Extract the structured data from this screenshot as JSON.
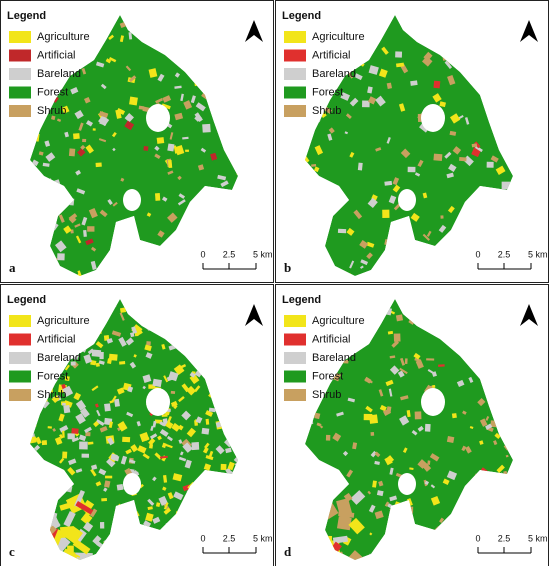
{
  "panels": [
    {
      "label": "a",
      "legend": {
        "title": "Legend",
        "items": [
          {
            "name": "Agriculture",
            "color": "#f2e51a"
          },
          {
            "name": "Artificial",
            "color": "#c0282a"
          },
          {
            "name": "Bareland",
            "color": "#cfcfcf"
          },
          {
            "name": "Forest",
            "color": "#1f9a1f"
          },
          {
            "name": "Shrub",
            "color": "#c8a060"
          }
        ]
      },
      "scale": [
        "0",
        "2.5",
        "5 km"
      ]
    },
    {
      "label": "b",
      "legend": {
        "title": "Legend",
        "items": [
          {
            "name": "Agriculture",
            "color": "#f2e51a"
          },
          {
            "name": "Artificial",
            "color": "#e0302e"
          },
          {
            "name": "Bareland",
            "color": "#cfcfcf"
          },
          {
            "name": "Forest",
            "color": "#1f9a1f"
          },
          {
            "name": "Shrub",
            "color": "#c8a060"
          }
        ]
      },
      "scale": [
        "0",
        "2.5",
        "5 km"
      ]
    },
    {
      "label": "c",
      "legend": {
        "title": "Legend",
        "items": [
          {
            "name": "Agriculture",
            "color": "#f2e51a"
          },
          {
            "name": "Artificial",
            "color": "#e0302e"
          },
          {
            "name": "Bareland",
            "color": "#cfcfcf"
          },
          {
            "name": "Forest",
            "color": "#1f9a1f"
          },
          {
            "name": "Shrub",
            "color": "#c8a060"
          }
        ]
      },
      "scale": [
        "0",
        "2.5",
        "5 km"
      ]
    },
    {
      "label": "d",
      "legend": {
        "title": "Legend",
        "items": [
          {
            "name": "Agriculture",
            "color": "#f2e51a"
          },
          {
            "name": "Artificial",
            "color": "#e0302e"
          },
          {
            "name": "Bareland",
            "color": "#cfcfcf"
          },
          {
            "name": "Forest",
            "color": "#1f9a1f"
          },
          {
            "name": "Shrub",
            "color": "#c8a060"
          }
        ]
      },
      "scale": [
        "0",
        "2.5",
        "5 km"
      ]
    }
  ]
}
